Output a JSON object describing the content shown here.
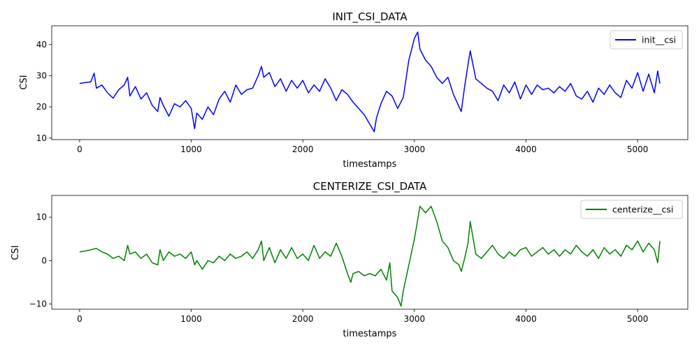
{
  "chart_data": [
    {
      "type": "line",
      "title": "INIT_CSI_DATA",
      "xlabel": "timestamps",
      "ylabel": "CSI",
      "xlim": [
        -250,
        5450
      ],
      "ylim": [
        9.5,
        46
      ],
      "xticks": [
        0,
        1000,
        2000,
        3000,
        4000,
        5000
      ],
      "yticks": [
        10,
        20,
        30,
        40
      ],
      "grid": false,
      "legend_position": "top-right",
      "series": [
        {
          "name": "init__csi",
          "color": "#0000ff",
          "x": [
            0,
            50,
            100,
            130,
            150,
            200,
            250,
            300,
            350,
            400,
            430,
            450,
            500,
            550,
            600,
            650,
            700,
            720,
            750,
            800,
            850,
            900,
            950,
            1000,
            1030,
            1050,
            1100,
            1150,
            1200,
            1250,
            1300,
            1350,
            1400,
            1450,
            1500,
            1550,
            1600,
            1630,
            1650,
            1700,
            1750,
            1800,
            1850,
            1900,
            1950,
            2000,
            2050,
            2100,
            2150,
            2200,
            2250,
            2300,
            2350,
            2400,
            2450,
            2500,
            2550,
            2600,
            2640,
            2660,
            2700,
            2750,
            2800,
            2850,
            2900,
            2950,
            3000,
            3030,
            3050,
            3100,
            3150,
            3200,
            3250,
            3300,
            3350,
            3400,
            3420,
            3450,
            3480,
            3500,
            3550,
            3600,
            3650,
            3700,
            3750,
            3800,
            3850,
            3900,
            3950,
            4000,
            4050,
            4100,
            4150,
            4200,
            4250,
            4300,
            4350,
            4400,
            4450,
            4500,
            4550,
            4600,
            4650,
            4700,
            4750,
            4800,
            4850,
            4900,
            4950,
            5000,
            5050,
            5100,
            5150,
            5180,
            5200
          ],
          "y": [
            27.5,
            27.8,
            28.0,
            30.8,
            26.0,
            27.0,
            24.5,
            22.8,
            25.5,
            27.0,
            29.5,
            23.5,
            26.5,
            22.5,
            24.5,
            20.5,
            18.5,
            23.0,
            20.5,
            17.0,
            21.0,
            20.0,
            22.0,
            19.5,
            13.0,
            18.0,
            16.0,
            20.0,
            17.5,
            22.5,
            25.0,
            21.5,
            27.0,
            24.0,
            25.5,
            26.0,
            30.0,
            33.0,
            29.5,
            31.0,
            26.5,
            29.0,
            25.0,
            28.5,
            26.0,
            28.5,
            24.5,
            27.0,
            25.0,
            29.0,
            26.0,
            22.0,
            25.5,
            24.0,
            21.5,
            19.5,
            17.5,
            14.5,
            12.0,
            16.5,
            21.0,
            25.0,
            23.5,
            19.5,
            23.0,
            35.0,
            42.0,
            44.0,
            38.5,
            35.0,
            33.0,
            29.5,
            27.5,
            29.5,
            24.0,
            20.0,
            18.5,
            26.5,
            33.5,
            38.0,
            29.0,
            27.5,
            26.0,
            25.0,
            22.0,
            27.0,
            24.5,
            28.0,
            22.5,
            27.0,
            24.0,
            27.0,
            25.5,
            26.0,
            24.5,
            26.5,
            25.0,
            27.5,
            23.5,
            22.5,
            25.0,
            21.5,
            26.0,
            24.0,
            27.0,
            24.5,
            23.0,
            28.5,
            26.0,
            31.0,
            25.0,
            30.5,
            24.5,
            31.5,
            27.5
          ]
        }
      ]
    },
    {
      "type": "line",
      "title": "CENTERIZE_CSI_DATA",
      "xlabel": "timestamps",
      "ylabel": "CSI",
      "xlim": [
        -250,
        5450
      ],
      "ylim": [
        -11.2,
        15
      ],
      "xticks": [
        0,
        1000,
        2000,
        3000,
        4000,
        5000
      ],
      "yticks": [
        -10,
        0,
        10
      ],
      "grid": false,
      "legend_position": "top-right",
      "series": [
        {
          "name": "centerize__csi",
          "color": "#008000",
          "x": [
            0,
            50,
            100,
            150,
            200,
            250,
            300,
            350,
            400,
            430,
            450,
            500,
            550,
            600,
            650,
            700,
            720,
            750,
            800,
            850,
            900,
            950,
            1000,
            1030,
            1050,
            1100,
            1150,
            1200,
            1250,
            1300,
            1350,
            1400,
            1450,
            1500,
            1550,
            1600,
            1630,
            1650,
            1700,
            1750,
            1800,
            1850,
            1900,
            1950,
            2000,
            2050,
            2100,
            2150,
            2200,
            2250,
            2300,
            2350,
            2400,
            2430,
            2450,
            2500,
            2550,
            2600,
            2650,
            2700,
            2750,
            2780,
            2800,
            2850,
            2880,
            2900,
            2950,
            3000,
            3050,
            3100,
            3150,
            3200,
            3250,
            3300,
            3350,
            3400,
            3420,
            3450,
            3480,
            3500,
            3550,
            3600,
            3650,
            3700,
            3750,
            3800,
            3850,
            3900,
            3950,
            4000,
            4050,
            4100,
            4150,
            4200,
            4250,
            4300,
            4350,
            4400,
            4450,
            4500,
            4550,
            4600,
            4650,
            4700,
            4750,
            4800,
            4850,
            4900,
            4950,
            5000,
            5050,
            5100,
            5150,
            5180,
            5200
          ],
          "y": [
            2.0,
            2.2,
            2.5,
            2.8,
            2.0,
            1.5,
            0.5,
            1.0,
            0.0,
            3.5,
            1.5,
            2.0,
            0.5,
            1.5,
            -0.5,
            -1.0,
            2.5,
            0.0,
            2.0,
            1.0,
            1.5,
            0.5,
            2.0,
            -1.0,
            0.0,
            -2.0,
            0.0,
            -0.5,
            1.0,
            0.0,
            1.5,
            0.5,
            1.0,
            2.0,
            0.5,
            2.5,
            4.5,
            0.0,
            3.0,
            -0.5,
            2.5,
            0.5,
            3.0,
            0.5,
            1.5,
            0.0,
            3.5,
            0.5,
            2.0,
            1.0,
            4.0,
            1.0,
            -3.0,
            -5.0,
            -3.0,
            -2.5,
            -3.5,
            -3.0,
            -3.5,
            -2.0,
            -4.5,
            -0.5,
            -7.0,
            -8.5,
            -10.5,
            -7.0,
            -1.0,
            5.0,
            12.5,
            11.0,
            12.5,
            9.0,
            4.5,
            3.0,
            0.0,
            -1.0,
            -2.5,
            0.5,
            4.0,
            9.0,
            1.5,
            0.5,
            2.0,
            3.5,
            1.5,
            0.5,
            2.0,
            1.0,
            2.5,
            3.0,
            1.0,
            2.0,
            3.0,
            1.5,
            2.5,
            1.0,
            2.5,
            1.5,
            3.5,
            2.0,
            1.0,
            2.5,
            0.5,
            3.0,
            1.5,
            2.5,
            1.0,
            3.5,
            2.5,
            4.5,
            2.0,
            4.0,
            2.5,
            -0.5,
            4.5
          ]
        }
      ]
    }
  ]
}
